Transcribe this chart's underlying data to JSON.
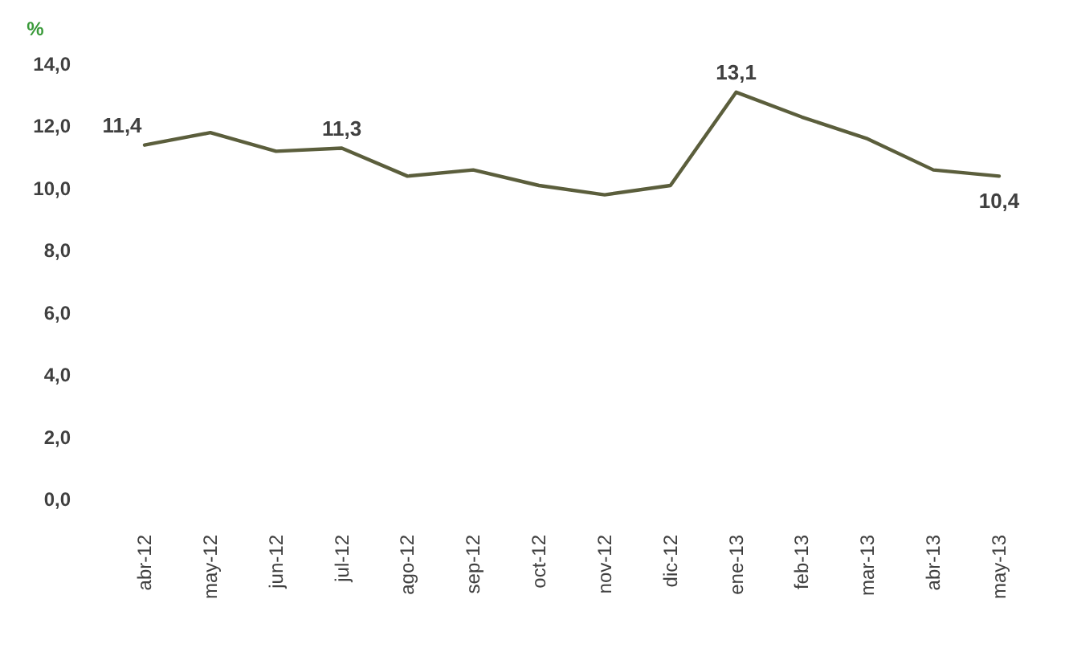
{
  "chart_data": {
    "type": "line",
    "ylabel": "%",
    "categories": [
      "abr-12",
      "may-12",
      "jun-12",
      "jul-12",
      "ago-12",
      "sep-12",
      "oct-12",
      "nov-12",
      "dic-12",
      "ene-13",
      "feb-13",
      "mar-13",
      "abr-13",
      "may-13"
    ],
    "series": [
      {
        "color": "#5b5e3c",
        "values": [
          11.4,
          11.8,
          11.2,
          11.3,
          10.4,
          10.6,
          10.1,
          9.8,
          10.1,
          13.1,
          12.3,
          11.6,
          10.6,
          10.4
        ],
        "value_labels": [
          "11,4",
          null,
          null,
          "11,3",
          null,
          null,
          null,
          null,
          null,
          "13,1",
          null,
          null,
          null,
          "10,4"
        ]
      }
    ],
    "ylim": [
      0,
      14
    ],
    "yticks": [
      {
        "value": 0,
        "label": "0,0"
      },
      {
        "value": 2,
        "label": "2,0"
      },
      {
        "value": 4,
        "label": "4,0"
      },
      {
        "value": 6,
        "label": "6,0"
      },
      {
        "value": 8,
        "label": "8,0"
      },
      {
        "value": 10,
        "label": "10,0"
      },
      {
        "value": 12,
        "label": "12,0"
      },
      {
        "value": 14,
        "label": "14,0"
      }
    ],
    "grid": false,
    "marker": "none",
    "line_style": "solid"
  }
}
